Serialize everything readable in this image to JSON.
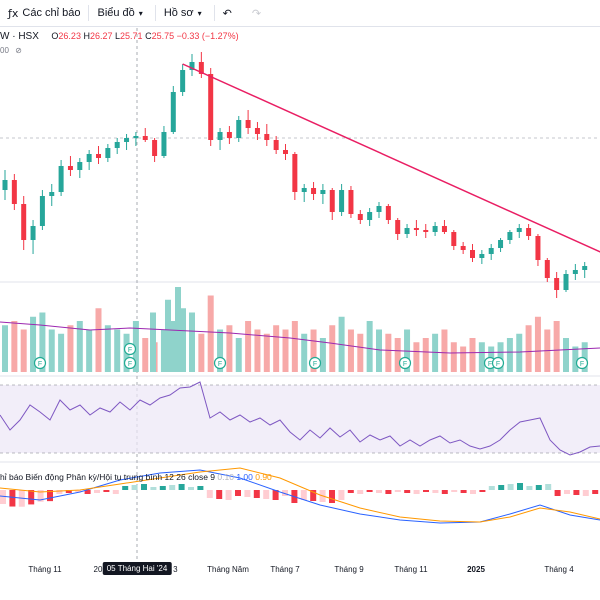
{
  "toolbar": {
    "indicators_label": "Các chỉ báo",
    "chart_type_label": "Biểu đồ",
    "templates_label": "Hồ sơ"
  },
  "legend": {
    "symbol": "W · HSX",
    "open_key": "O",
    "open": "26.23",
    "high_key": "H",
    "high": "26.27",
    "low_key": "L",
    "low": "25.71",
    "close_key": "C",
    "close": "25.75",
    "change": "−0.33 (−1.27%)",
    "volume_suffix": "00"
  },
  "macd_legend": {
    "name": "hỉ báo Biến động Phân kỳ/Hội tụ trung bình 12 26 close 9",
    "v1": "0.10",
    "v2": "1.00",
    "v3": "0.90"
  },
  "xaxis": {
    "labels": [
      "Tháng 11",
      "20",
      "g 3",
      "Tháng Năm",
      "Tháng 7",
      "Tháng 9",
      "Tháng 11",
      "2025",
      "Tháng 4"
    ],
    "crosshair_label": "05 Tháng Hai '24"
  },
  "colors": {
    "up": "#26a69a",
    "down": "#f23645",
    "trend": "#e91e63",
    "rsi": "#7e57c2",
    "macd": "#2962ff",
    "signal": "#ff9800"
  },
  "chart_data": {
    "type": "candlestick",
    "candles": [
      [
        29,
        30,
        28.5,
        29.5
      ],
      [
        29.5,
        29.8,
        28,
        28.3
      ],
      [
        28.3,
        28.7,
        26,
        26.5
      ],
      [
        26.5,
        27.5,
        25.8,
        27.2
      ],
      [
        27.2,
        29,
        27,
        28.7
      ],
      [
        28.7,
        29.3,
        28.2,
        28.9
      ],
      [
        28.9,
        30.5,
        28.7,
        30.2
      ],
      [
        30.2,
        30.7,
        29.7,
        30
      ],
      [
        30,
        30.6,
        29.6,
        30.4
      ],
      [
        30.4,
        31,
        30,
        30.8
      ],
      [
        30.8,
        31.2,
        30.3,
        30.6
      ],
      [
        30.6,
        31.3,
        30.4,
        31.1
      ],
      [
        31.1,
        31.6,
        30.8,
        31.4
      ],
      [
        31.4,
        31.8,
        31,
        31.6
      ],
      [
        31.6,
        31.9,
        31.2,
        31.7
      ],
      [
        31.7,
        32.1,
        31.4,
        31.5
      ],
      [
        31.5,
        31.6,
        30.4,
        30.7
      ],
      [
        30.7,
        32.2,
        30.6,
        31.9
      ],
      [
        31.9,
        34.2,
        31.8,
        33.9
      ],
      [
        33.9,
        35.3,
        33.7,
        35
      ],
      [
        35,
        35.8,
        34.7,
        35.4
      ],
      [
        35.4,
        35.9,
        34.6,
        34.8
      ],
      [
        34.8,
        35.1,
        31.2,
        31.5
      ],
      [
        31.5,
        32.1,
        31,
        31.9
      ],
      [
        31.9,
        32.2,
        31.3,
        31.6
      ],
      [
        31.6,
        32.7,
        31.4,
        32.5
      ],
      [
        32.5,
        33,
        31.8,
        32.1
      ],
      [
        32.1,
        32.4,
        31.5,
        31.8
      ],
      [
        31.8,
        32.3,
        31.2,
        31.5
      ],
      [
        31.5,
        31.7,
        30.8,
        31
      ],
      [
        31,
        31.3,
        30.5,
        30.8
      ],
      [
        30.8,
        30.9,
        28.5,
        28.9
      ],
      [
        28.9,
        29.3,
        28.4,
        29.1
      ],
      [
        29.1,
        29.4,
        28.5,
        28.8
      ],
      [
        28.8,
        29.3,
        28.3,
        29
      ],
      [
        29,
        29.1,
        27.5,
        27.9
      ],
      [
        27.9,
        29.3,
        27.7,
        29
      ],
      [
        29,
        29.2,
        27.6,
        27.8
      ],
      [
        27.8,
        28,
        27.3,
        27.5
      ],
      [
        27.5,
        28.1,
        27.2,
        27.9
      ],
      [
        27.9,
        28.4,
        27.6,
        28.2
      ],
      [
        28.2,
        28.3,
        27.3,
        27.5
      ],
      [
        27.5,
        27.6,
        26.5,
        26.8
      ],
      [
        26.8,
        27.3,
        26.6,
        27.1
      ],
      [
        27.1,
        27.5,
        26.7,
        27
      ],
      [
        27,
        27.3,
        26.6,
        26.9
      ],
      [
        26.9,
        27.4,
        26.7,
        27.2
      ],
      [
        27.2,
        27.5,
        26.8,
        26.9
      ],
      [
        26.9,
        27,
        26,
        26.2
      ],
      [
        26.2,
        26.4,
        25.8,
        26
      ],
      [
        26,
        26.3,
        25.4,
        25.6
      ],
      [
        25.6,
        26,
        25.3,
        25.8
      ],
      [
        25.8,
        26.3,
        25.5,
        26.1
      ],
      [
        26.1,
        26.6,
        25.9,
        26.5
      ],
      [
        26.5,
        27,
        26.3,
        26.9
      ],
      [
        26.9,
        27.3,
        26.6,
        27.1
      ],
      [
        27.1,
        27.3,
        26.5,
        26.7
      ],
      [
        26.7,
        26.8,
        25.2,
        25.5
      ],
      [
        25.5,
        25.6,
        24.4,
        24.6
      ],
      [
        24.6,
        24.9,
        23.6,
        24
      ],
      [
        24,
        25,
        23.9,
        24.8
      ],
      [
        24.8,
        25.3,
        24.5,
        25
      ],
      [
        25,
        25.4,
        24.6,
        25.2
      ]
    ],
    "trendline_from": [
      19,
      35.3
    ],
    "trendline_to": [
      67,
      25.2
    ],
    "price_range": [
      22.5,
      36.5
    ]
  }
}
